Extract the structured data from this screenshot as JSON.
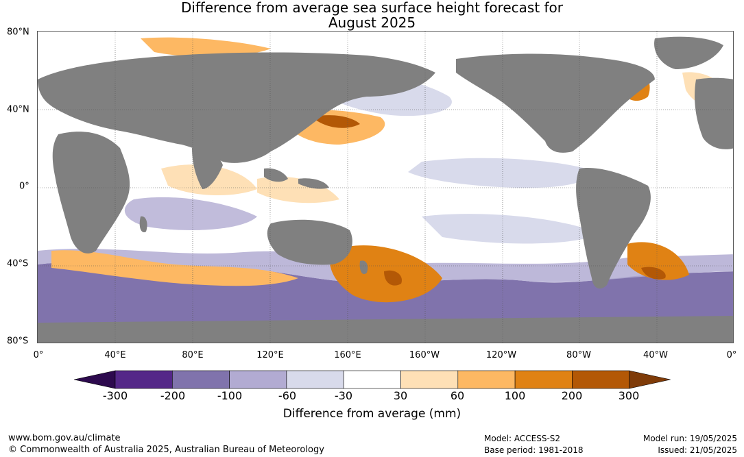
{
  "title_line1": "Difference from average sea surface height forecast for",
  "title_line2": "August 2025",
  "lat_labels": [
    "80°N",
    "40°N",
    "0°",
    "40°S",
    "80°S"
  ],
  "lon_labels": [
    "0°",
    "40°E",
    "80°E",
    "120°E",
    "160°E",
    "160°W",
    "120°W",
    "80°W",
    "40°W",
    "0°"
  ],
  "colorbar": {
    "ticks": [
      "-300",
      "-200",
      "-100",
      "-60",
      "-30",
      "30",
      "60",
      "100",
      "200",
      "300"
    ],
    "colors": [
      "#2d0a4e",
      "#542788",
      "#8073ac",
      "#b2abd2",
      "#d8daeb",
      "#ffffff",
      "#fee0b6",
      "#fdb863",
      "#e08214",
      "#b35806",
      "#7f3b08"
    ],
    "title": "Difference from average (mm)"
  },
  "colors": {
    "land": "#808080",
    "ocean": "#ffffff"
  },
  "footer": {
    "url": "www.bom.gov.au/climate",
    "copyright": "© Commonwealth of Australia 2025, Australian Bureau of Meteorology",
    "model": "Model: ACCESS-S2",
    "base_period": "Base period: 1981-2018",
    "model_run": "Model run: 19/05/2025",
    "issued": "Issued: 21/05/2025"
  }
}
